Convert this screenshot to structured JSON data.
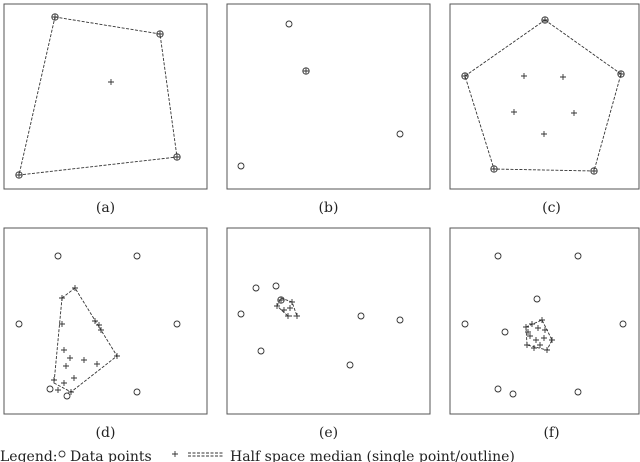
{
  "panels": [
    {
      "caption": "(a)"
    },
    {
      "caption": "(b)"
    },
    {
      "caption": "(c)"
    },
    {
      "caption": "(d)"
    },
    {
      "caption": "(e)"
    },
    {
      "caption": "(f)"
    }
  ],
  "legend": {
    "label": "Legend:",
    "items": [
      "Data points",
      "Half space median (single point/outline)"
    ]
  }
}
